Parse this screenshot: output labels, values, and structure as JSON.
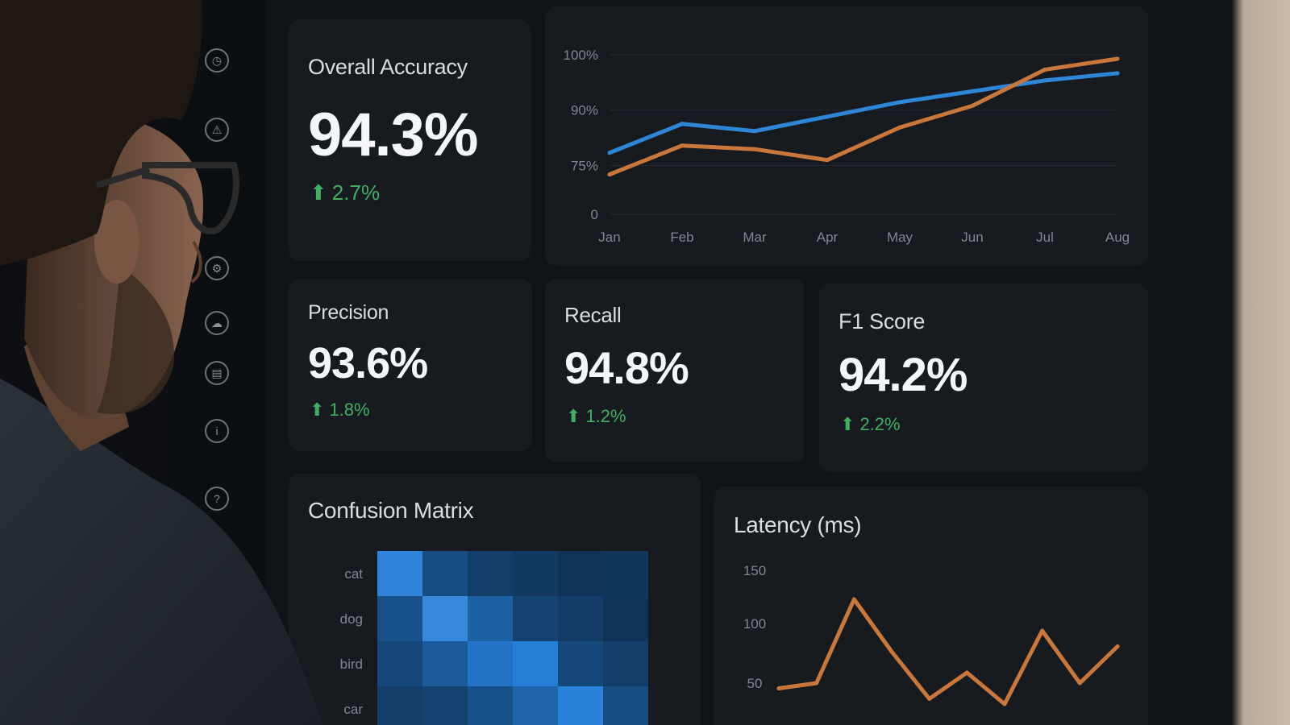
{
  "sidebar": {
    "icons": [
      "dashboard-icon",
      "alert-icon",
      "settings-icon",
      "cloud-icon",
      "database-icon",
      "info-icon",
      "help-icon"
    ]
  },
  "accuracy_card": {
    "title": "Overall Accuracy",
    "value": "94.3%",
    "delta": "2.7%"
  },
  "metrics": [
    {
      "title": "Precision",
      "value": "93.6%",
      "delta": "1.8%"
    },
    {
      "title": "Recall",
      "value": "94.8%",
      "delta": "1.2%"
    },
    {
      "title": "F1 Score",
      "value": "94.2%",
      "delta": "2.2%"
    }
  ],
  "confusion_card": {
    "title": "Confusion Matrix"
  },
  "latency_card": {
    "title": "Latency (ms)"
  },
  "colors": {
    "blue": "#2f86d6",
    "orange": "#c9773a",
    "green": "#3faf62"
  },
  "chart_data": [
    {
      "type": "line",
      "title": "",
      "x": [
        "Jan",
        "Feb",
        "Mar",
        "Apr",
        "May",
        "Jun",
        "Jul",
        "Aug"
      ],
      "y_ticks": [
        "0",
        "75%",
        "90%",
        "100%"
      ],
      "ylim": [
        0,
        100
      ],
      "series": [
        {
          "values": [
            72,
            80,
            78,
            82,
            86,
            89,
            92,
            94
          ]
        },
        {
          "values": [
            66,
            74,
            73,
            70,
            79,
            85,
            95,
            98
          ]
        }
      ],
      "grid": true
    },
    {
      "type": "line",
      "title": "",
      "y_ticks": [
        "50",
        "100",
        "150"
      ],
      "series": [
        {
          "values": [
            55,
            60,
            140,
            90,
            45,
            70,
            40,
            110,
            60,
            95
          ]
        }
      ],
      "grid": false
    },
    {
      "type": "heatmap",
      "title": "",
      "y_tick_labels": [
        "cat",
        "dog",
        "bird",
        "car"
      ],
      "values": [
        [
          0.92,
          0.35,
          0.2,
          0.15,
          0.1,
          0.12
        ],
        [
          0.4,
          0.95,
          0.55,
          0.25,
          0.18,
          0.1
        ],
        [
          0.3,
          0.5,
          0.75,
          0.85,
          0.3,
          0.2
        ],
        [
          0.2,
          0.25,
          0.4,
          0.6,
          0.9,
          0.35
        ]
      ]
    }
  ]
}
